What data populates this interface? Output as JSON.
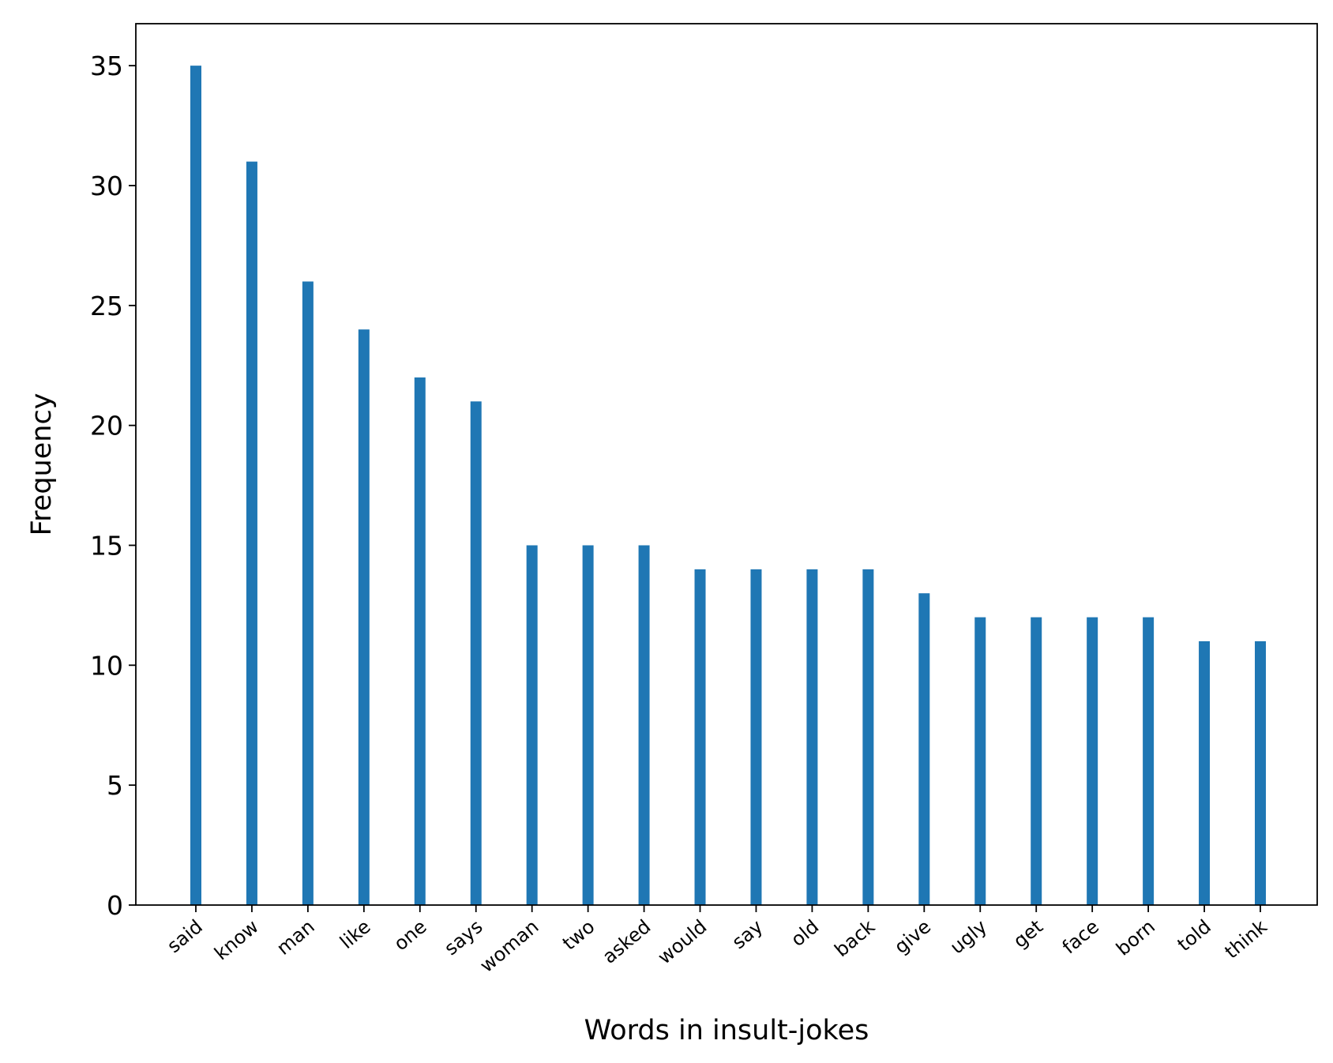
{
  "chart_data": {
    "type": "bar",
    "title": "",
    "xlabel": "Words in insult-jokes",
    "ylabel": "Frequency",
    "categories": [
      "said",
      "know",
      "man",
      "like",
      "one",
      "says",
      "woman",
      "two",
      "asked",
      "would",
      "say",
      "old",
      "back",
      "give",
      "ugly",
      "get",
      "face",
      "born",
      "told",
      "think"
    ],
    "values": [
      35,
      31,
      26,
      24,
      22,
      21,
      15,
      15,
      15,
      14,
      14,
      14,
      14,
      13,
      12,
      12,
      12,
      12,
      11,
      11
    ],
    "ylim": [
      0,
      36.75
    ],
    "yticks": [
      "0",
      "5",
      "10",
      "15",
      "20",
      "25",
      "30",
      "35"
    ],
    "grid": false,
    "bar_color": "#1f77b4"
  }
}
